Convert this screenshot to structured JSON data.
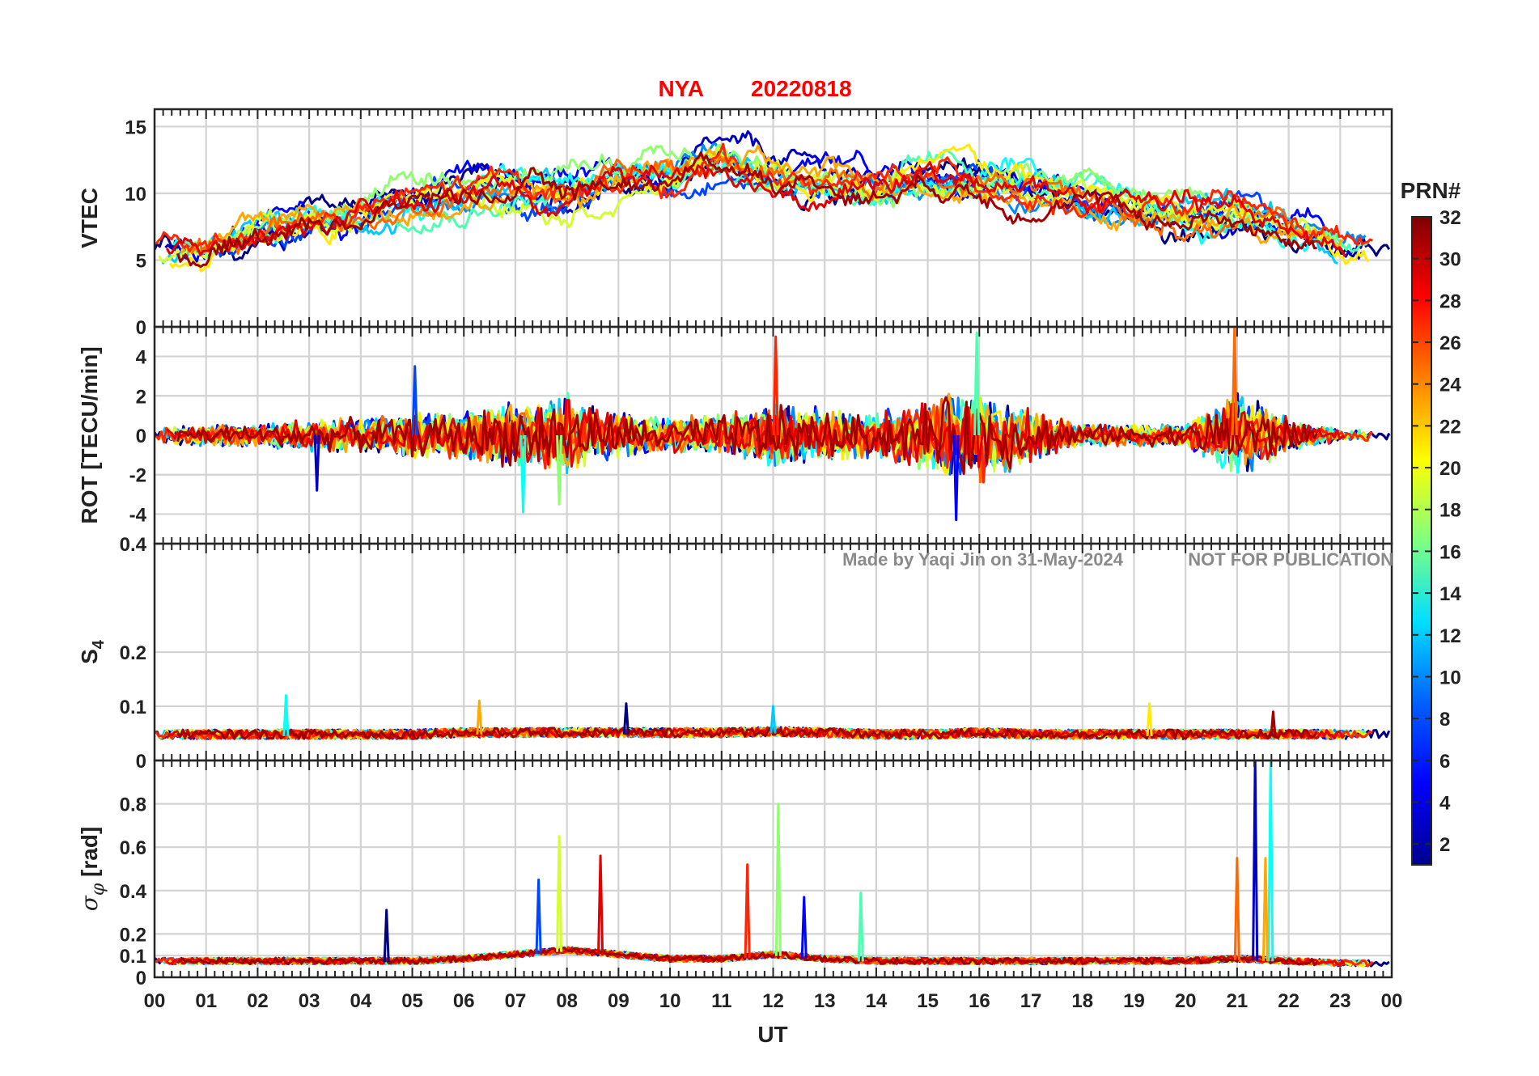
{
  "figure": {
    "title_station": "NYA",
    "title_date": "20220818",
    "watermark_left": "Made by Yaqi Jin on 31-May-2024",
    "watermark_right": "NOT FOR PUBLICATION",
    "xlabel": "UT"
  },
  "chart_data": {
    "type": "line",
    "x_ticks": [
      "00",
      "01",
      "02",
      "03",
      "04",
      "05",
      "06",
      "07",
      "08",
      "09",
      "10",
      "11",
      "12",
      "13",
      "14",
      "15",
      "16",
      "17",
      "18",
      "19",
      "20",
      "21",
      "22",
      "23",
      "00"
    ],
    "x_range_hours": [
      0,
      24
    ],
    "panels": [
      {
        "name": "vtec",
        "ylabel": "VTEC",
        "ylim": [
          0,
          16.3
        ],
        "yticks": [
          0,
          5,
          10,
          15
        ],
        "ytick_labels": [
          "0",
          "5",
          "10",
          "15"
        ],
        "envelope": {
          "hours": [
            0,
            1,
            2,
            3,
            4,
            5,
            6,
            7,
            8,
            9,
            10,
            11,
            12,
            13,
            14,
            15,
            16,
            17,
            18,
            19,
            20,
            21,
            22,
            23,
            24
          ],
          "center": [
            5.5,
            5.5,
            7.0,
            8.0,
            8.5,
            9.5,
            10.0,
            10.5,
            10.0,
            11.0,
            11.5,
            12.5,
            11.5,
            11.0,
            10.5,
            11.5,
            11.0,
            10.5,
            9.5,
            8.5,
            8.0,
            8.5,
            7.0,
            6.0,
            5.5
          ],
          "spread": 1.2
        }
      },
      {
        "name": "rot",
        "ylabel": "ROT [TECU/min]",
        "ylim": [
          -5.5,
          5.5
        ],
        "yticks": [
          -4,
          -2,
          0,
          2,
          4
        ],
        "ytick_labels": [
          "-4",
          "-2",
          "0",
          "2",
          "4"
        ],
        "envelope": {
          "hours": [
            0,
            1,
            2,
            3,
            4,
            5,
            6,
            7,
            8,
            9,
            10,
            11,
            12,
            13,
            14,
            15,
            16,
            17,
            18,
            19,
            20,
            21,
            22,
            23,
            24
          ],
          "center": [
            0,
            0,
            0,
            0,
            0,
            0,
            0,
            0,
            0,
            0,
            0,
            0,
            0,
            0,
            0,
            0,
            0,
            0,
            0,
            0,
            0,
            0,
            0,
            0,
            0
          ],
          "spread_by_hour": [
            0.4,
            0.5,
            0.5,
            0.7,
            0.8,
            1.0,
            1.2,
            1.6,
            1.8,
            1.0,
            0.8,
            1.0,
            1.5,
            1.2,
            1.0,
            1.6,
            2.2,
            1.2,
            0.5,
            0.5,
            0.5,
            2.0,
            0.8,
            0.3,
            0.3
          ]
        },
        "spikes": [
          {
            "hour": 5.05,
            "value": 3.5
          },
          {
            "hour": 7.85,
            "value": -3.5
          },
          {
            "hour": 12.05,
            "value": 5.0
          },
          {
            "hour": 15.55,
            "value": -4.3
          },
          {
            "hour": 15.95,
            "value": 5.2
          },
          {
            "hour": 20.95,
            "value": 5.4
          },
          {
            "hour": 3.15,
            "value": -2.8
          },
          {
            "hour": 7.15,
            "value": -3.9
          }
        ]
      },
      {
        "name": "s4",
        "ylabel": "S4",
        "ylim": [
          0,
          0.4
        ],
        "yticks": [
          0,
          0.1,
          0.2,
          0.4
        ],
        "ytick_labels": [
          "0",
          "0.1",
          "0.2",
          "0.4"
        ],
        "envelope": {
          "hours": [
            0,
            1,
            2,
            3,
            4,
            5,
            6,
            7,
            8,
            9,
            10,
            11,
            12,
            13,
            14,
            15,
            16,
            17,
            18,
            19,
            20,
            21,
            22,
            23,
            24
          ],
          "center": [
            0.045,
            0.045,
            0.045,
            0.045,
            0.045,
            0.045,
            0.048,
            0.048,
            0.048,
            0.048,
            0.048,
            0.048,
            0.05,
            0.048,
            0.045,
            0.045,
            0.048,
            0.045,
            0.045,
            0.045,
            0.045,
            0.045,
            0.045,
            0.045,
            0.045
          ],
          "spread": 0.012
        },
        "spikes": [
          {
            "hour": 2.55,
            "value": 0.12
          },
          {
            "hour": 6.3,
            "value": 0.11
          },
          {
            "hour": 9.15,
            "value": 0.105
          },
          {
            "hour": 12.0,
            "value": 0.1
          },
          {
            "hour": 19.3,
            "value": 0.105
          },
          {
            "hour": 21.7,
            "value": 0.09
          }
        ]
      },
      {
        "name": "sigma_phi",
        "ylabel": "σ_φ [rad]",
        "ylim": [
          0,
          1.0
        ],
        "yticks": [
          0,
          0.1,
          0.2,
          0.4,
          0.6,
          0.8
        ],
        "ytick_labels": [
          "0",
          "0.1",
          "0.2",
          "0.4",
          "0.6",
          "0.8"
        ],
        "envelope": {
          "hours": [
            0,
            1,
            2,
            3,
            4,
            5,
            6,
            7,
            8,
            9,
            10,
            11,
            12,
            13,
            14,
            15,
            16,
            17,
            18,
            19,
            20,
            21,
            22,
            23,
            24
          ],
          "center": [
            0.07,
            0.07,
            0.07,
            0.07,
            0.07,
            0.07,
            0.08,
            0.1,
            0.12,
            0.1,
            0.08,
            0.08,
            0.1,
            0.08,
            0.07,
            0.07,
            0.07,
            0.07,
            0.07,
            0.07,
            0.07,
            0.08,
            0.07,
            0.06,
            0.06
          ],
          "spread": 0.02
        },
        "spikes": [
          {
            "hour": 7.85,
            "value": 0.65
          },
          {
            "hour": 8.65,
            "value": 0.56
          },
          {
            "hour": 7.45,
            "value": 0.45
          },
          {
            "hour": 12.1,
            "value": 0.8
          },
          {
            "hour": 11.5,
            "value": 0.52
          },
          {
            "hour": 12.6,
            "value": 0.37
          },
          {
            "hour": 13.7,
            "value": 0.39
          },
          {
            "hour": 21.0,
            "value": 0.55
          },
          {
            "hour": 21.35,
            "value": 1.0
          },
          {
            "hour": 21.65,
            "value": 1.0
          },
          {
            "hour": 21.55,
            "value": 0.55
          },
          {
            "hour": 4.5,
            "value": 0.31
          }
        ]
      }
    ],
    "series_prns": [
      1,
      3,
      5,
      7,
      9,
      11,
      13,
      15,
      17,
      19,
      21,
      23,
      25,
      27,
      29,
      31
    ],
    "colorbar": {
      "label": "PRN#",
      "range": [
        1,
        32
      ],
      "ticks": [
        2,
        4,
        6,
        8,
        10,
        12,
        14,
        16,
        18,
        20,
        22,
        24,
        26,
        28,
        30,
        32
      ],
      "tick_labels": [
        "2",
        "4",
        "6",
        "8",
        "10",
        "12",
        "14",
        "16",
        "18",
        "20",
        "22",
        "24",
        "26",
        "28",
        "30",
        "32"
      ],
      "colormap": "jet",
      "colors": [
        "#00008f",
        "#0000ff",
        "#0080ff",
        "#00ffff",
        "#80ff80",
        "#ffff00",
        "#ff8000",
        "#ff0000",
        "#800000"
      ]
    }
  }
}
